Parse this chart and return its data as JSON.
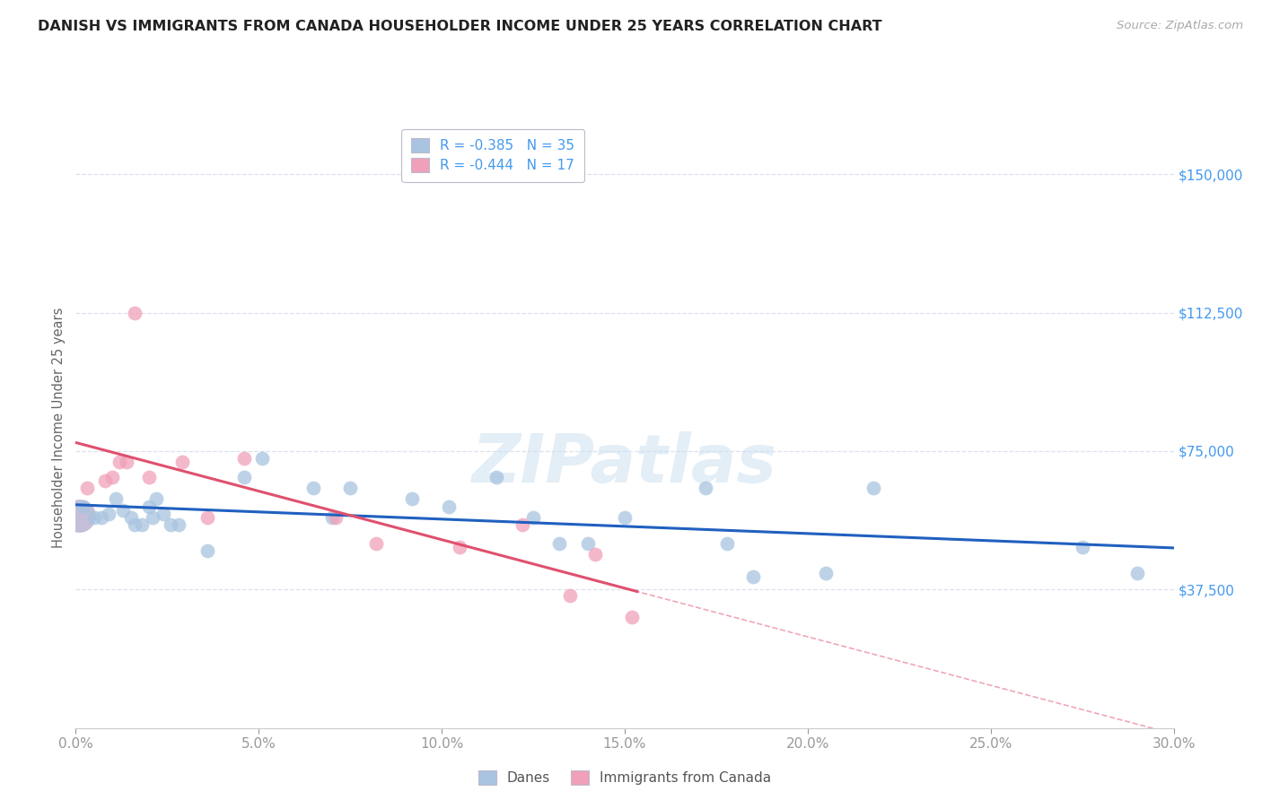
{
  "title": "DANISH VS IMMIGRANTS FROM CANADA HOUSEHOLDER INCOME UNDER 25 YEARS CORRELATION CHART",
  "source": "Source: ZipAtlas.com",
  "ylabel": "Householder Income Under 25 years",
  "ytick_labels": [
    "$150,000",
    "$112,500",
    "$75,000",
    "$37,500"
  ],
  "ytick_vals": [
    150000,
    112500,
    75000,
    37500
  ],
  "xtick_vals": [
    0.0,
    5.0,
    10.0,
    15.0,
    20.0,
    25.0,
    30.0
  ],
  "xlim": [
    0.0,
    30.0
  ],
  "ylim": [
    0,
    162500
  ],
  "legend1_R": "-0.385",
  "legend1_N": "35",
  "legend2_R": "-0.444",
  "legend2_N": "17",
  "dane_fill": "#a8c4e0",
  "canada_fill": "#f0a0b8",
  "dane_line": "#2060c0",
  "canada_line": "#e0506e",
  "title_color": "#222222",
  "axis_tick_color": "#4499ee",
  "ylabel_color": "#666666",
  "grid_color": "#dde0ee",
  "watermark_color": "#cce0f0",
  "background": "#ffffff",
  "danes_x": [
    0.2,
    0.5,
    0.7,
    0.9,
    1.1,
    1.3,
    1.5,
    1.6,
    1.8,
    2.0,
    2.1,
    2.2,
    2.4,
    2.6,
    2.8,
    3.6,
    4.6,
    5.1,
    6.5,
    7.0,
    7.5,
    9.2,
    10.2,
    11.5,
    12.5,
    13.2,
    14.0,
    15.0,
    17.2,
    17.8,
    18.5,
    20.5,
    21.8,
    27.5,
    29.0
  ],
  "danes_y": [
    60000,
    57000,
    57000,
    58000,
    62000,
    59000,
    57000,
    55000,
    55000,
    60000,
    57000,
    62000,
    58000,
    55000,
    55000,
    48000,
    68000,
    73000,
    65000,
    57000,
    65000,
    62000,
    60000,
    68000,
    57000,
    50000,
    50000,
    57000,
    65000,
    50000,
    41000,
    42000,
    65000,
    49000,
    42000
  ],
  "canada_x": [
    0.3,
    0.8,
    1.0,
    1.2,
    1.4,
    1.6,
    2.0,
    2.9,
    3.6,
    4.6,
    7.1,
    8.2,
    10.5,
    12.2,
    13.5,
    14.2,
    15.2
  ],
  "canada_y": [
    65000,
    67000,
    68000,
    72000,
    72000,
    112500,
    68000,
    72000,
    57000,
    73000,
    57000,
    50000,
    49000,
    55000,
    36000,
    47000,
    30000
  ],
  "large_dot_x": 0.1,
  "large_dot_y": 57500,
  "large_dot_size": 700,
  "large_dot_color": "#b0a8cc"
}
